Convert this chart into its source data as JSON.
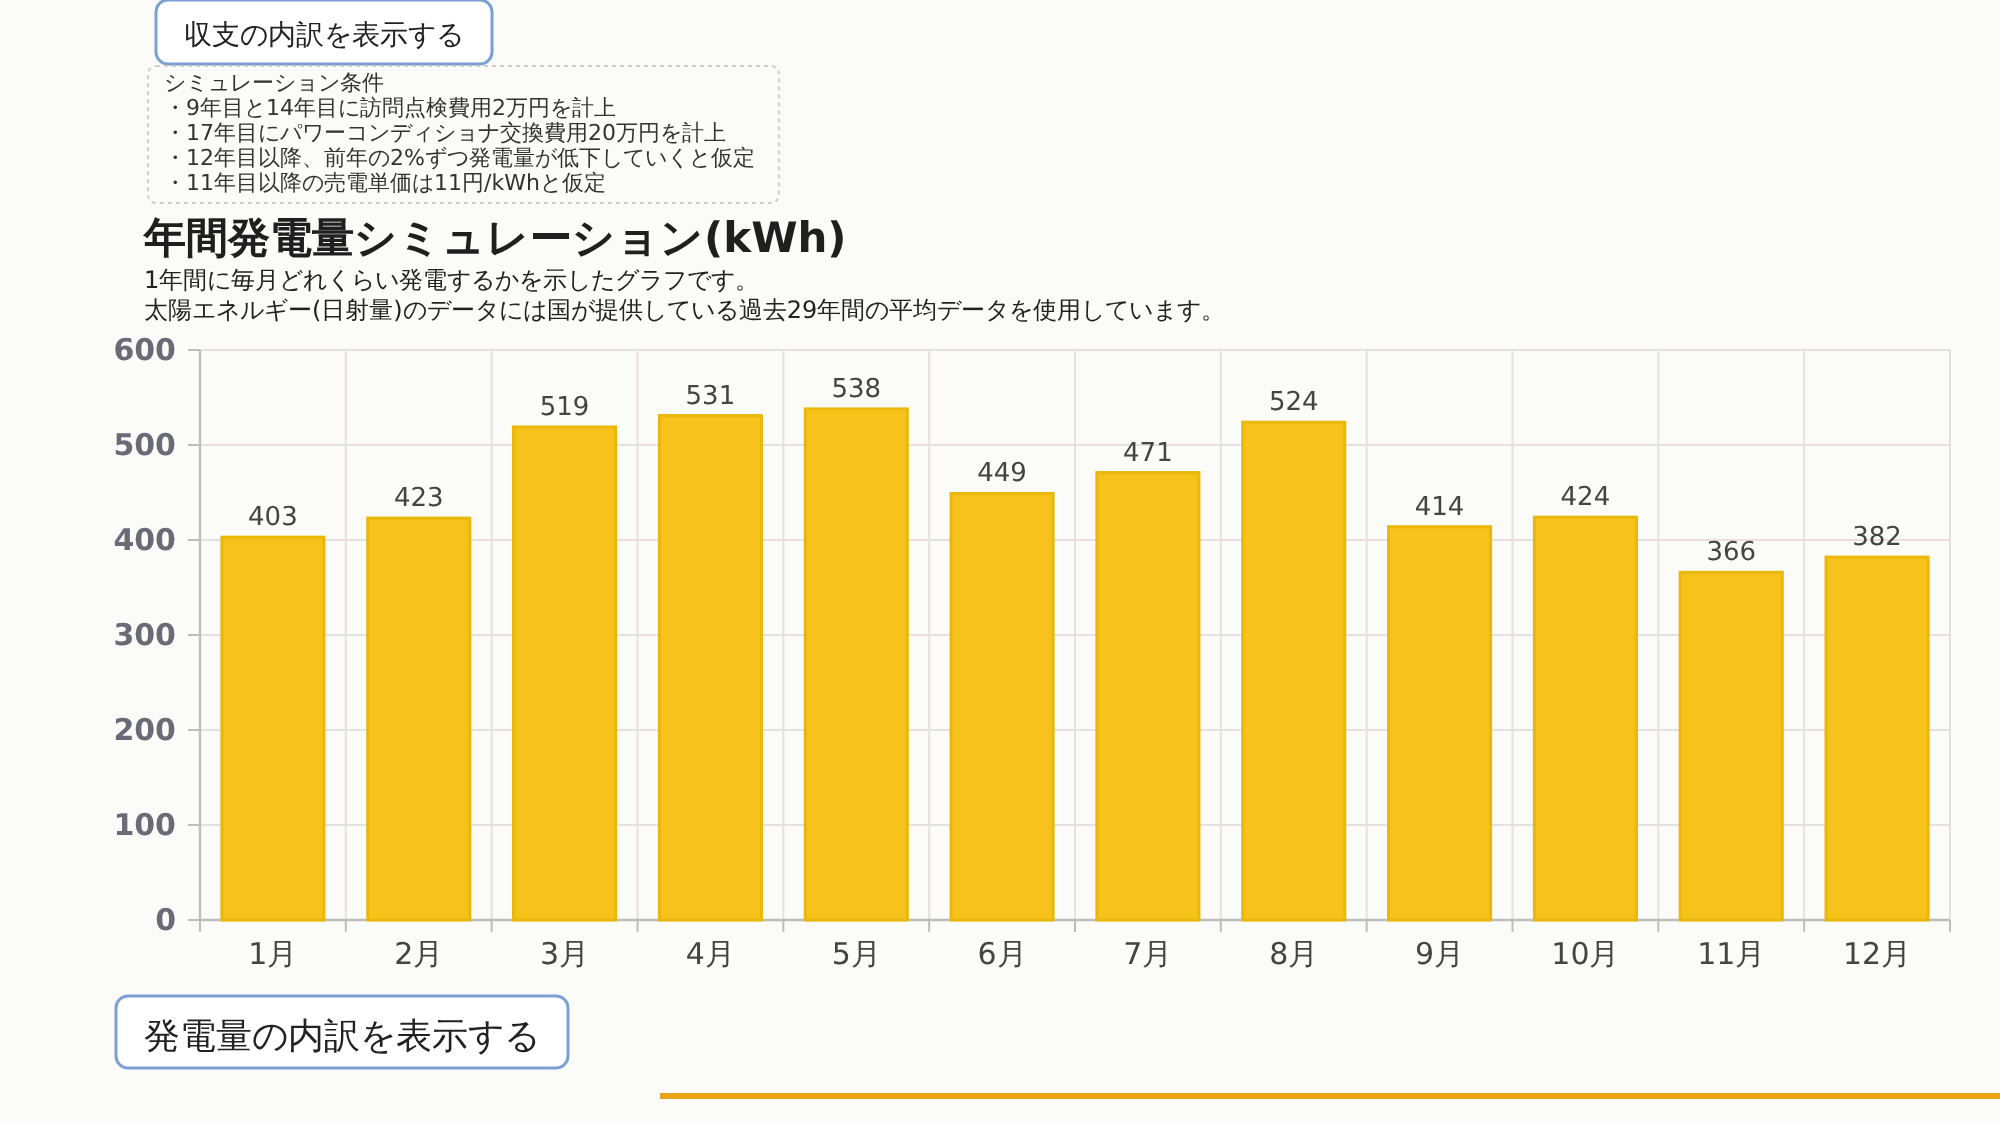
{
  "chart_data": {
    "type": "bar",
    "title": "年間発電量シミュレーション(kWh)",
    "subtitle": "1年間に毎月どれくらい発電するかを示したグラフです。",
    "categories": [
      "1月",
      "2月",
      "3月",
      "4月",
      "5月",
      "6月",
      "7月",
      "8月",
      "9月",
      "10月",
      "11月",
      "12月"
    ],
    "values": [
      403,
      423,
      519,
      531,
      538,
      449,
      471,
      524,
      414,
      424,
      366,
      382
    ],
    "color": "#f6c21b",
    "ylim": [
      0,
      600
    ],
    "yticks": [
      0,
      100,
      200,
      300,
      400,
      500,
      600
    ],
    "grid": true,
    "data_labels": true,
    "annotations": [
      "収支の内訳を表示する",
      "シミュレーション条件",
      "・9年目と14年目に訪問点検費用2万円を計上",
      "・17年目にパワーコンディショナ交換費用20万円を計上",
      "・12年目以降、前年の2%ずつ発電量が低下していくと仮定",
      "・11年目以降の売電単価は11円/kWhと仮定",
      "太陽エネルギー(日射量)のデータには国が提供している過去29年間の平均データを使用しています。",
      "発電量の内訳を表示する"
    ]
  }
}
